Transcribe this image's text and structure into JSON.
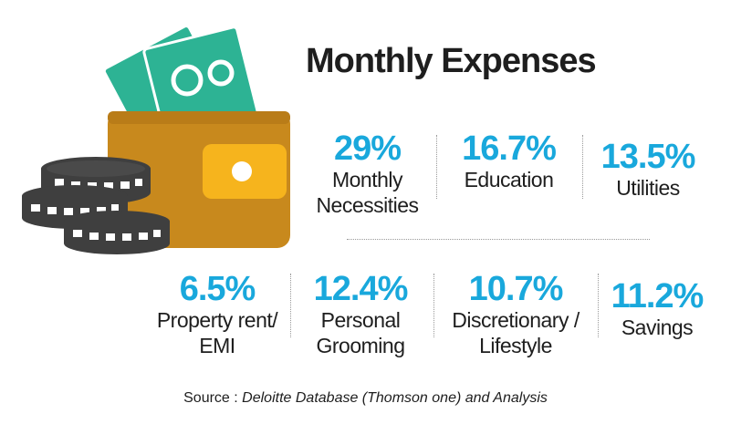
{
  "title": "Monthly Expenses",
  "colors": {
    "accent": "#19a8dc",
    "wallet": "#c8891d",
    "clasp": "#f6b41d",
    "money": "#2db394",
    "coins": "#3f3f3f"
  },
  "icons": {
    "illustration": "wallet-with-money-and-coins-icon"
  },
  "stats": [
    {
      "value": "29%",
      "label_lines": [
        "Monthly",
        "Necessities"
      ]
    },
    {
      "value": "16.7%",
      "label_lines": [
        "Education"
      ]
    },
    {
      "value": "13.5%",
      "label_lines": [
        "Utilities"
      ]
    },
    {
      "value": "6.5%",
      "label_lines": [
        "Property rent/",
        "EMI"
      ]
    },
    {
      "value": "12.4%",
      "label_lines": [
        "Personal",
        "Grooming"
      ]
    },
    {
      "value": "10.7%",
      "label_lines": [
        "Discretionary /",
        "Lifestyle"
      ]
    },
    {
      "value": "11.2%",
      "label_lines": [
        "Savings"
      ]
    }
  ],
  "source": {
    "prefix": "Source :",
    "text": "Deloitte Database (Thomson one) and Analysis"
  }
}
